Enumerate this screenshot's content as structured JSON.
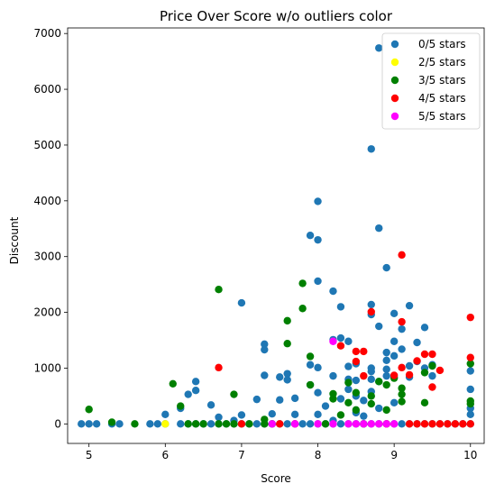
{
  "chart_data": {
    "type": "scatter",
    "title": "Price Over Score w/o outliers color",
    "xlabel": "Score",
    "ylabel": "Discount",
    "xlim": [
      4.72,
      10.18
    ],
    "ylim": [
      -350,
      7100
    ],
    "xticks": [
      5,
      6,
      7,
      8,
      9,
      10
    ],
    "yticks": [
      0,
      1000,
      2000,
      3000,
      4000,
      5000,
      6000,
      7000
    ],
    "grid": false,
    "legend_position": "top-right",
    "series": [
      {
        "name": "0/5 stars",
        "color": "#1f77b4",
        "points": [
          [
            4.9,
            0
          ],
          [
            5.0,
            0
          ],
          [
            5.1,
            0
          ],
          [
            5.3,
            0
          ],
          [
            5.4,
            0
          ],
          [
            5.8,
            0
          ],
          [
            5.9,
            0
          ],
          [
            6.0,
            0
          ],
          [
            6.2,
            0
          ],
          [
            6.3,
            0
          ],
          [
            6.4,
            0
          ],
          [
            6.5,
            0
          ],
          [
            6.6,
            0
          ],
          [
            6.7,
            0
          ],
          [
            6.8,
            0
          ],
          [
            6.9,
            0
          ],
          [
            7.0,
            0
          ],
          [
            7.1,
            0
          ],
          [
            7.2,
            0
          ],
          [
            7.3,
            0
          ],
          [
            7.4,
            0
          ],
          [
            7.5,
            0
          ],
          [
            7.6,
            0
          ],
          [
            7.7,
            0
          ],
          [
            7.8,
            0
          ],
          [
            7.9,
            0
          ],
          [
            8.0,
            0
          ],
          [
            8.1,
            0
          ],
          [
            8.2,
            0
          ],
          [
            8.3,
            0
          ],
          [
            8.4,
            0
          ],
          [
            8.5,
            0
          ],
          [
            8.6,
            0
          ],
          [
            8.7,
            0
          ],
          [
            8.8,
            0
          ],
          [
            8.9,
            0
          ],
          [
            9.0,
            0
          ],
          [
            9.1,
            0
          ],
          [
            9.2,
            0
          ],
          [
            9.3,
            0
          ],
          [
            9.4,
            0
          ],
          [
            9.5,
            0
          ],
          [
            9.6,
            0
          ],
          [
            9.7,
            0
          ],
          [
            9.8,
            0
          ],
          [
            9.9,
            0
          ],
          [
            10.0,
            0
          ],
          [
            6.0,
            170
          ],
          [
            6.2,
            280
          ],
          [
            6.3,
            530
          ],
          [
            6.4,
            600
          ],
          [
            6.4,
            760
          ],
          [
            6.6,
            340
          ],
          [
            6.7,
            120
          ],
          [
            6.9,
            60
          ],
          [
            7.0,
            160
          ],
          [
            7.0,
            2170
          ],
          [
            7.2,
            440
          ],
          [
            7.3,
            1330
          ],
          [
            7.3,
            1430
          ],
          [
            7.3,
            870
          ],
          [
            7.4,
            180
          ],
          [
            7.5,
            430
          ],
          [
            7.5,
            840
          ],
          [
            7.6,
            790
          ],
          [
            7.6,
            900
          ],
          [
            7.7,
            460
          ],
          [
            7.7,
            170
          ],
          [
            7.9,
            3380
          ],
          [
            7.9,
            1060
          ],
          [
            7.9,
            700
          ],
          [
            8.0,
            3300
          ],
          [
            8.0,
            3990
          ],
          [
            8.0,
            2560
          ],
          [
            8.0,
            560
          ],
          [
            8.0,
            1010
          ],
          [
            8.0,
            170
          ],
          [
            8.1,
            320
          ],
          [
            8.2,
            2380
          ],
          [
            8.2,
            860
          ],
          [
            8.2,
            1510
          ],
          [
            8.2,
            60
          ],
          [
            8.3,
            1540
          ],
          [
            8.3,
            2100
          ],
          [
            8.3,
            450
          ],
          [
            8.4,
            1480
          ],
          [
            8.4,
            1030
          ],
          [
            8.4,
            800
          ],
          [
            8.4,
            620
          ],
          [
            8.5,
            1080
          ],
          [
            8.5,
            780
          ],
          [
            8.5,
            500
          ],
          [
            8.5,
            200
          ],
          [
            8.6,
            420
          ],
          [
            8.6,
            140
          ],
          [
            8.7,
            4930
          ],
          [
            8.7,
            2140
          ],
          [
            8.7,
            1960
          ],
          [
            8.7,
            1000
          ],
          [
            8.7,
            940
          ],
          [
            8.7,
            800
          ],
          [
            8.7,
            580
          ],
          [
            8.8,
            6740
          ],
          [
            8.8,
            3510
          ],
          [
            8.8,
            1750
          ],
          [
            8.8,
            760
          ],
          [
            8.8,
            280
          ],
          [
            8.9,
            2800
          ],
          [
            8.9,
            1280
          ],
          [
            8.9,
            1140
          ],
          [
            8.9,
            980
          ],
          [
            8.9,
            860
          ],
          [
            9.0,
            1980
          ],
          [
            9.0,
            1480
          ],
          [
            9.0,
            1220
          ],
          [
            9.0,
            840
          ],
          [
            9.0,
            380
          ],
          [
            9.1,
            1700
          ],
          [
            9.1,
            1340
          ],
          [
            9.2,
            2120
          ],
          [
            9.2,
            1040
          ],
          [
            9.2,
            840
          ],
          [
            9.3,
            1460
          ],
          [
            9.3,
            1120
          ],
          [
            9.4,
            1730
          ],
          [
            9.4,
            1000
          ],
          [
            9.5,
            1060
          ],
          [
            9.5,
            860
          ],
          [
            10.0,
            950
          ],
          [
            10.0,
            620
          ],
          [
            10.0,
            280
          ],
          [
            10.0,
            170
          ]
        ]
      },
      {
        "name": "2/5 stars",
        "color": "#ffff00",
        "points": [
          [
            6.0,
            0
          ]
        ]
      },
      {
        "name": "3/5 stars",
        "color": "#008000",
        "points": [
          [
            5.0,
            260
          ],
          [
            5.3,
            30
          ],
          [
            5.6,
            0
          ],
          [
            6.1,
            720
          ],
          [
            6.2,
            320
          ],
          [
            6.3,
            0
          ],
          [
            6.4,
            0
          ],
          [
            6.5,
            0
          ],
          [
            6.7,
            2410
          ],
          [
            6.7,
            0
          ],
          [
            6.8,
            0
          ],
          [
            6.9,
            530
          ],
          [
            6.9,
            0
          ],
          [
            7.1,
            0
          ],
          [
            7.3,
            0
          ],
          [
            7.3,
            80
          ],
          [
            7.4,
            0
          ],
          [
            7.6,
            1850
          ],
          [
            7.6,
            1440
          ],
          [
            7.8,
            2520
          ],
          [
            7.8,
            2070
          ],
          [
            7.9,
            1210
          ],
          [
            7.9,
            700
          ],
          [
            8.1,
            0
          ],
          [
            8.2,
            540
          ],
          [
            8.2,
            450
          ],
          [
            8.3,
            160
          ],
          [
            8.4,
            740
          ],
          [
            8.4,
            380
          ],
          [
            8.5,
            560
          ],
          [
            8.5,
            250
          ],
          [
            8.6,
            0
          ],
          [
            8.7,
            500
          ],
          [
            8.7,
            360
          ],
          [
            8.8,
            760
          ],
          [
            8.9,
            700
          ],
          [
            8.9,
            250
          ],
          [
            9.0,
            820
          ],
          [
            9.1,
            640
          ],
          [
            9.1,
            530
          ],
          [
            9.1,
            400
          ],
          [
            9.4,
            920
          ],
          [
            9.4,
            380
          ],
          [
            9.5,
            1040
          ],
          [
            10.0,
            1080
          ],
          [
            10.0,
            410
          ],
          [
            10.0,
            360
          ]
        ]
      },
      {
        "name": "4/5 stars",
        "color": "#ff0000",
        "points": [
          [
            6.7,
            1010
          ],
          [
            7.0,
            0
          ],
          [
            7.5,
            0
          ],
          [
            7.7,
            0
          ],
          [
            8.3,
            1400
          ],
          [
            8.5,
            1300
          ],
          [
            8.5,
            1120
          ],
          [
            8.6,
            1300
          ],
          [
            8.6,
            860
          ],
          [
            8.7,
            2010
          ],
          [
            8.9,
            0
          ],
          [
            9.0,
            870
          ],
          [
            9.1,
            3030
          ],
          [
            9.1,
            1830
          ],
          [
            9.1,
            1010
          ],
          [
            9.2,
            880
          ],
          [
            9.2,
            0
          ],
          [
            9.3,
            1130
          ],
          [
            9.3,
            0
          ],
          [
            9.4,
            1250
          ],
          [
            9.4,
            0
          ],
          [
            9.5,
            1250
          ],
          [
            9.5,
            660
          ],
          [
            9.5,
            0
          ],
          [
            9.6,
            960
          ],
          [
            9.6,
            0
          ],
          [
            9.7,
            0
          ],
          [
            9.8,
            0
          ],
          [
            9.9,
            0
          ],
          [
            10.0,
            1910
          ],
          [
            10.0,
            1190
          ],
          [
            10.0,
            0
          ]
        ]
      },
      {
        "name": "5/5 stars",
        "color": "#ff00ff",
        "points": [
          [
            7.4,
            0
          ],
          [
            7.7,
            0
          ],
          [
            8.0,
            0
          ],
          [
            8.2,
            1480
          ],
          [
            8.2,
            0
          ],
          [
            8.4,
            0
          ],
          [
            8.5,
            0
          ],
          [
            8.6,
            0
          ],
          [
            8.7,
            0
          ],
          [
            8.8,
            0
          ],
          [
            8.9,
            0
          ],
          [
            9.0,
            0
          ]
        ]
      }
    ]
  }
}
